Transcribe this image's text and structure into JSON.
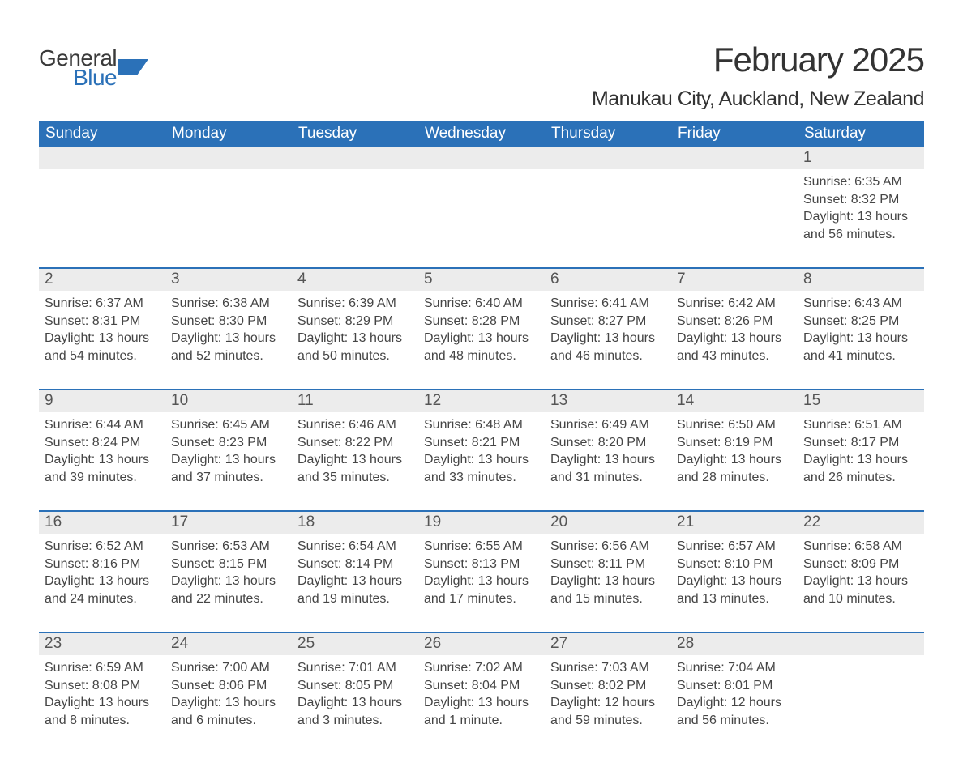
{
  "logo": {
    "word1": "General",
    "word2": "Blue",
    "icon_color": "#2b71b8"
  },
  "title": {
    "month": "February 2025",
    "location": "Manukau City, Auckland, New Zealand"
  },
  "colors": {
    "header_bg": "#2b71b8",
    "daynum_bg": "#ececec",
    "text": "#454545",
    "title_text": "#333333"
  },
  "weekdays": [
    "Sunday",
    "Monday",
    "Tuesday",
    "Wednesday",
    "Thursday",
    "Friday",
    "Saturday"
  ],
  "weeks": [
    [
      null,
      null,
      null,
      null,
      null,
      null,
      {
        "n": "1",
        "sunrise": "6:35 AM",
        "sunset": "8:32 PM",
        "daylight": "13 hours and 56 minutes."
      }
    ],
    [
      {
        "n": "2",
        "sunrise": "6:37 AM",
        "sunset": "8:31 PM",
        "daylight": "13 hours and 54 minutes."
      },
      {
        "n": "3",
        "sunrise": "6:38 AM",
        "sunset": "8:30 PM",
        "daylight": "13 hours and 52 minutes."
      },
      {
        "n": "4",
        "sunrise": "6:39 AM",
        "sunset": "8:29 PM",
        "daylight": "13 hours and 50 minutes."
      },
      {
        "n": "5",
        "sunrise": "6:40 AM",
        "sunset": "8:28 PM",
        "daylight": "13 hours and 48 minutes."
      },
      {
        "n": "6",
        "sunrise": "6:41 AM",
        "sunset": "8:27 PM",
        "daylight": "13 hours and 46 minutes."
      },
      {
        "n": "7",
        "sunrise": "6:42 AM",
        "sunset": "8:26 PM",
        "daylight": "13 hours and 43 minutes."
      },
      {
        "n": "8",
        "sunrise": "6:43 AM",
        "sunset": "8:25 PM",
        "daylight": "13 hours and 41 minutes."
      }
    ],
    [
      {
        "n": "9",
        "sunrise": "6:44 AM",
        "sunset": "8:24 PM",
        "daylight": "13 hours and 39 minutes."
      },
      {
        "n": "10",
        "sunrise": "6:45 AM",
        "sunset": "8:23 PM",
        "daylight": "13 hours and 37 minutes."
      },
      {
        "n": "11",
        "sunrise": "6:46 AM",
        "sunset": "8:22 PM",
        "daylight": "13 hours and 35 minutes."
      },
      {
        "n": "12",
        "sunrise": "6:48 AM",
        "sunset": "8:21 PM",
        "daylight": "13 hours and 33 minutes."
      },
      {
        "n": "13",
        "sunrise": "6:49 AM",
        "sunset": "8:20 PM",
        "daylight": "13 hours and 31 minutes."
      },
      {
        "n": "14",
        "sunrise": "6:50 AM",
        "sunset": "8:19 PM",
        "daylight": "13 hours and 28 minutes."
      },
      {
        "n": "15",
        "sunrise": "6:51 AM",
        "sunset": "8:17 PM",
        "daylight": "13 hours and 26 minutes."
      }
    ],
    [
      {
        "n": "16",
        "sunrise": "6:52 AM",
        "sunset": "8:16 PM",
        "daylight": "13 hours and 24 minutes."
      },
      {
        "n": "17",
        "sunrise": "6:53 AM",
        "sunset": "8:15 PM",
        "daylight": "13 hours and 22 minutes."
      },
      {
        "n": "18",
        "sunrise": "6:54 AM",
        "sunset": "8:14 PM",
        "daylight": "13 hours and 19 minutes."
      },
      {
        "n": "19",
        "sunrise": "6:55 AM",
        "sunset": "8:13 PM",
        "daylight": "13 hours and 17 minutes."
      },
      {
        "n": "20",
        "sunrise": "6:56 AM",
        "sunset": "8:11 PM",
        "daylight": "13 hours and 15 minutes."
      },
      {
        "n": "21",
        "sunrise": "6:57 AM",
        "sunset": "8:10 PM",
        "daylight": "13 hours and 13 minutes."
      },
      {
        "n": "22",
        "sunrise": "6:58 AM",
        "sunset": "8:09 PM",
        "daylight": "13 hours and 10 minutes."
      }
    ],
    [
      {
        "n": "23",
        "sunrise": "6:59 AM",
        "sunset": "8:08 PM",
        "daylight": "13 hours and 8 minutes."
      },
      {
        "n": "24",
        "sunrise": "7:00 AM",
        "sunset": "8:06 PM",
        "daylight": "13 hours and 6 minutes."
      },
      {
        "n": "25",
        "sunrise": "7:01 AM",
        "sunset": "8:05 PM",
        "daylight": "13 hours and 3 minutes."
      },
      {
        "n": "26",
        "sunrise": "7:02 AM",
        "sunset": "8:04 PM",
        "daylight": "13 hours and 1 minute."
      },
      {
        "n": "27",
        "sunrise": "7:03 AM",
        "sunset": "8:02 PM",
        "daylight": "12 hours and 59 minutes."
      },
      {
        "n": "28",
        "sunrise": "7:04 AM",
        "sunset": "8:01 PM",
        "daylight": "12 hours and 56 minutes."
      },
      null
    ]
  ],
  "labels": {
    "sunrise": "Sunrise: ",
    "sunset": "Sunset: ",
    "daylight": "Daylight: "
  }
}
